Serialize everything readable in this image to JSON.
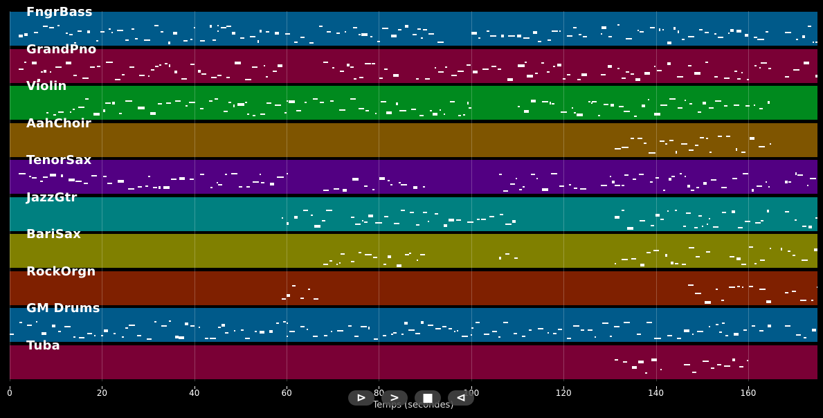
{
  "chart_data": {
    "type": "piano-roll",
    "xlabel": "Temps (secondes)",
    "xlim": [
      0,
      175
    ],
    "xticks": [
      0,
      20,
      40,
      60,
      80,
      100,
      120,
      140,
      160
    ],
    "grid": true,
    "tracks": [
      {
        "name": "FngrBass",
        "color": "#005a8a",
        "segments": [
          [
            2,
            25
          ],
          [
            25,
            45
          ],
          [
            45,
            65
          ],
          [
            65,
            95
          ],
          [
            100,
            125
          ],
          [
            128,
            165
          ],
          [
            168,
            175
          ]
        ]
      },
      {
        "name": "GrandPno",
        "color": "#7a0035",
        "segments": [
          [
            2,
            26
          ],
          [
            26,
            45
          ],
          [
            45,
            60
          ],
          [
            68,
            85
          ],
          [
            88,
            112
          ],
          [
            112,
            126
          ],
          [
            128,
            165
          ],
          [
            168,
            175
          ]
        ]
      },
      {
        "name": "Violin",
        "color": "#008a1e",
        "segments": [
          [
            8,
            60
          ],
          [
            60,
            100
          ],
          [
            110,
            165
          ]
        ]
      },
      {
        "name": "AahChoir",
        "color": "#7f5500",
        "segments": [
          [
            131,
            142
          ],
          [
            142,
            165
          ]
        ]
      },
      {
        "name": "TenorSax",
        "color": "#520082",
        "segments": [
          [
            2,
            30
          ],
          [
            30,
            60
          ],
          [
            68,
            90
          ],
          [
            106,
            125
          ],
          [
            128,
            165
          ],
          [
            168,
            175
          ]
        ]
      },
      {
        "name": "JazzGtr",
        "color": "#008080",
        "segments": [
          [
            59,
            70
          ],
          [
            74,
            92
          ],
          [
            92,
            110
          ],
          [
            131,
            150
          ],
          [
            150,
            165
          ],
          [
            168,
            175
          ]
        ]
      },
      {
        "name": "BariSax",
        "color": "#808000",
        "segments": [
          [
            68,
            90
          ],
          [
            106,
            110
          ],
          [
            131,
            152
          ],
          [
            156,
            165
          ],
          [
            167,
            175
          ]
        ]
      },
      {
        "name": "RockOrgn",
        "color": "#7f2000",
        "segments": [
          [
            59,
            67
          ],
          [
            147,
            165
          ],
          [
            168,
            175
          ]
        ]
      },
      {
        "name": "GM Drums",
        "color": "#005a8a",
        "segments": [
          [
            0,
            25
          ],
          [
            25,
            60
          ],
          [
            60,
            100
          ],
          [
            100,
            130
          ],
          [
            130,
            165
          ],
          [
            168,
            175
          ]
        ]
      },
      {
        "name": "Tuba",
        "color": "#7a0035",
        "segments": [
          [
            131,
            141
          ],
          [
            146,
            160
          ]
        ]
      }
    ]
  },
  "controls": {
    "prev_icon": "skip-back-icon",
    "play_icon": "play-icon",
    "stop_icon": "stop-icon",
    "rewind_icon": "rewind-icon"
  }
}
